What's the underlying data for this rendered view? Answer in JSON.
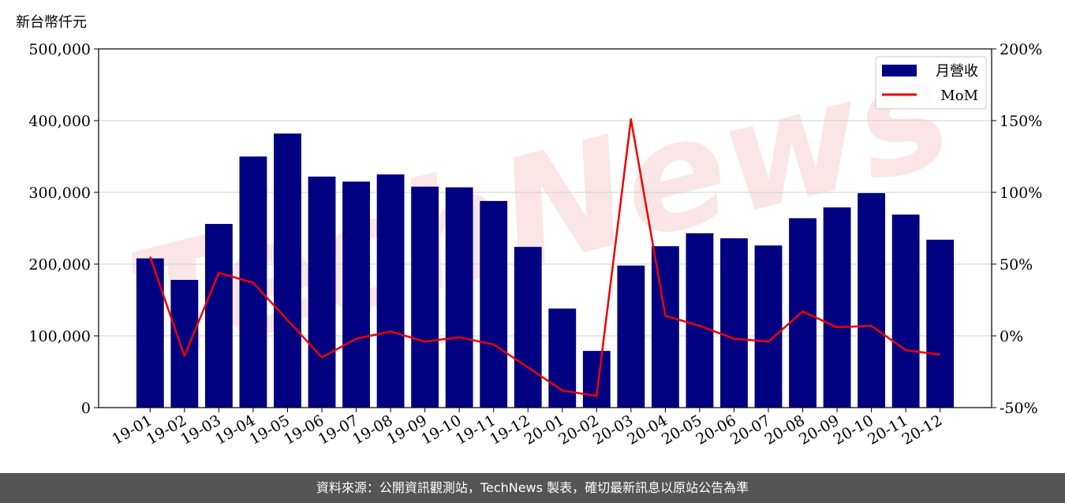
{
  "chart_data": {
    "type": "bar",
    "unit_label": "新台幣仟元",
    "categories": [
      "19-01",
      "19-02",
      "19-03",
      "19-04",
      "19-05",
      "19-06",
      "19-07",
      "19-08",
      "19-09",
      "19-10",
      "19-11",
      "19-12",
      "20-01",
      "20-02",
      "20-03",
      "20-04",
      "20-05",
      "20-06",
      "20-07",
      "20-08",
      "20-09",
      "20-10",
      "20-11",
      "20-12"
    ],
    "series": [
      {
        "name": "月營收",
        "axis": "left",
        "type": "bar",
        "color": "#000080",
        "values": [
          208000,
          178000,
          256000,
          350000,
          382000,
          322000,
          315000,
          325000,
          308000,
          307000,
          288000,
          224000,
          138000,
          79000,
          198000,
          225000,
          243000,
          236000,
          226000,
          264000,
          279000,
          299000,
          269000,
          234000
        ]
      },
      {
        "name": "MoM",
        "axis": "right",
        "type": "line",
        "color": "#ee0000",
        "values": [
          55,
          -14,
          44,
          37,
          11,
          -15,
          -2,
          3,
          -4,
          -1,
          -6,
          -22,
          -38,
          -42,
          151,
          14,
          7,
          -2,
          -4,
          17,
          6,
          7,
          -10,
          -13
        ]
      }
    ],
    "left_axis": {
      "ylim": [
        0,
        500000
      ],
      "ticks": [
        0,
        100000,
        200000,
        300000,
        400000,
        500000
      ],
      "tick_labels": [
        "0",
        "100,000",
        "200,000",
        "300,000",
        "400,000",
        "500,000"
      ]
    },
    "right_axis": {
      "ylim": [
        -50,
        200
      ],
      "ticks": [
        -50,
        0,
        50,
        100,
        150,
        200
      ],
      "tick_labels": [
        "-50%",
        "0%",
        "50%",
        "100%",
        "150%",
        "200%"
      ]
    },
    "grid": true,
    "legend_position": "top-right",
    "watermark": "TechNews"
  },
  "footer": {
    "source_text": "資料來源：公開資訊觀測站，TechNews 製表，確切最新訊息以原站公告為準"
  }
}
